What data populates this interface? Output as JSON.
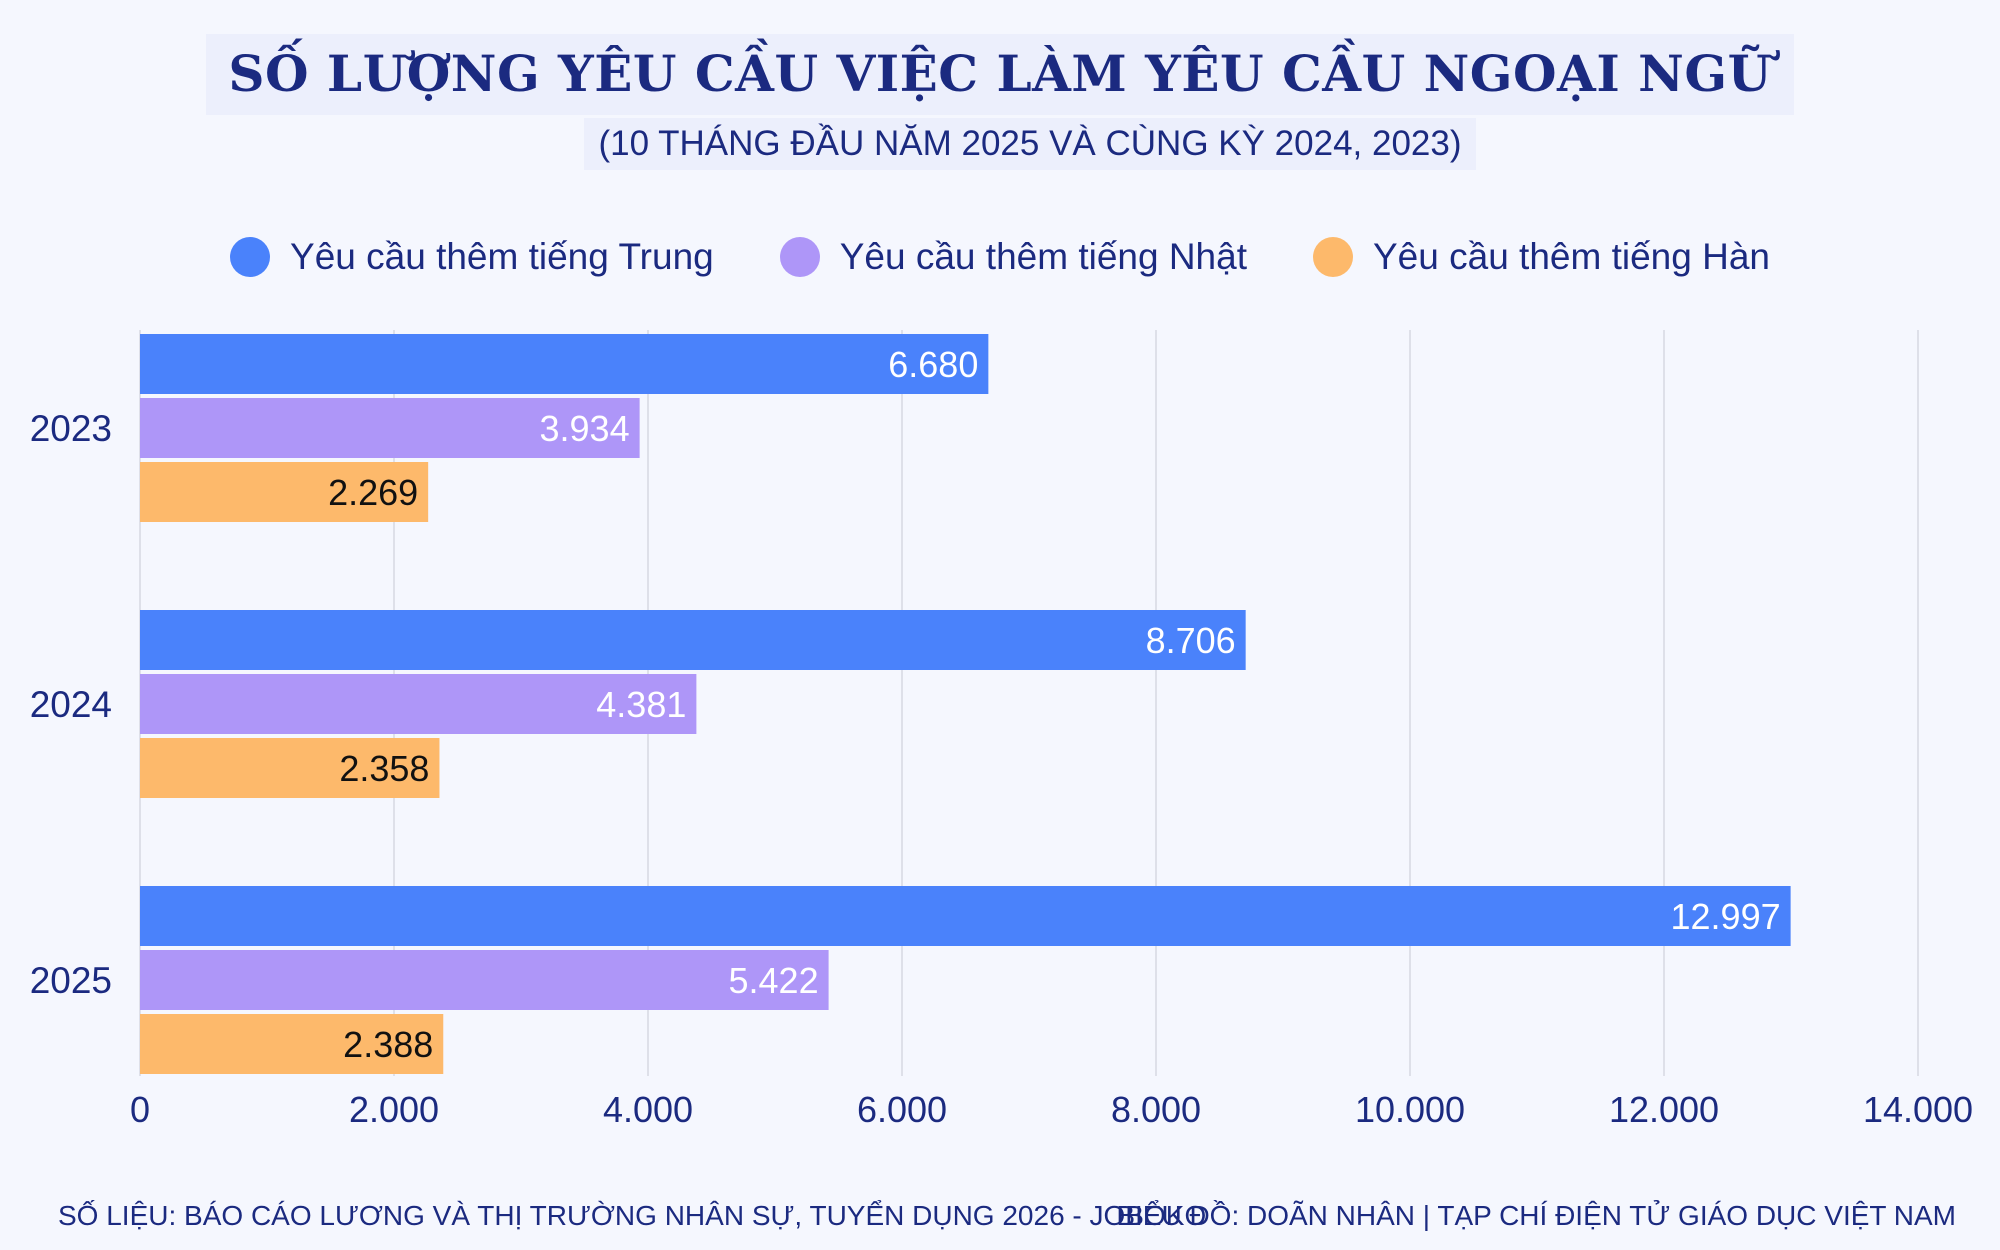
{
  "header": {
    "title": "SỐ LƯỢNG YÊU CẦU VIỆC LÀM YÊU CẦU NGOẠI NGỮ",
    "subtitle": "(10 THÁNG ĐẦU NĂM 2025 VÀ CÙNG KỲ 2024, 2023)"
  },
  "footer": {
    "source": "SỐ LIỆU: BÁO CÁO LƯƠNG VÀ THỊ TRƯỜNG NHÂN SỰ, TUYỂN DỤNG 2026 - JOBOKO",
    "credit": "BIỂU ĐỒ: DOÃN NHÂN | TẠP CHÍ ĐIỆN TỬ GIÁO DỤC VIỆT NAM"
  },
  "chart_data": {
    "type": "bar",
    "orientation": "horizontal",
    "title": "SỐ LƯỢNG YÊU CẦU VIỆC LÀM YÊU CẦU NGOẠI NGỮ",
    "subtitle": "(10 THÁNG ĐẦU NĂM 2025 VÀ CÙNG KỲ 2024, 2023)",
    "categories": [
      "2023",
      "2024",
      "2025"
    ],
    "series": [
      {
        "name": "Yêu cầu thêm tiếng Trung",
        "color": "#4a82fb",
        "values": [
          6680,
          8706,
          12997
        ],
        "labels": [
          "6.680",
          "8.706",
          "12.997"
        ],
        "label_color": "#ffffff"
      },
      {
        "name": "Yêu cầu thêm tiếng Nhật",
        "color": "#ae96f8",
        "values": [
          3934,
          4381,
          5422
        ],
        "labels": [
          "3.934",
          "4.381",
          "5.422"
        ],
        "label_color": "#ffffff"
      },
      {
        "name": "Yêu cầu thêm tiếng Hàn",
        "color": "#fdb96b",
        "values": [
          2269,
          2358,
          2388
        ],
        "labels": [
          "2.269",
          "2.358",
          "2.388"
        ],
        "label_color": "#111111"
      }
    ],
    "xlim": [
      0,
      14000
    ],
    "xticks": [
      0,
      2000,
      4000,
      6000,
      8000,
      10000,
      12000,
      14000
    ],
    "xtick_labels": [
      "0",
      "2.000",
      "4.000",
      "6.000",
      "8.000",
      "10.000",
      "12.000",
      "14.000"
    ],
    "grid": true,
    "legend": "top"
  }
}
